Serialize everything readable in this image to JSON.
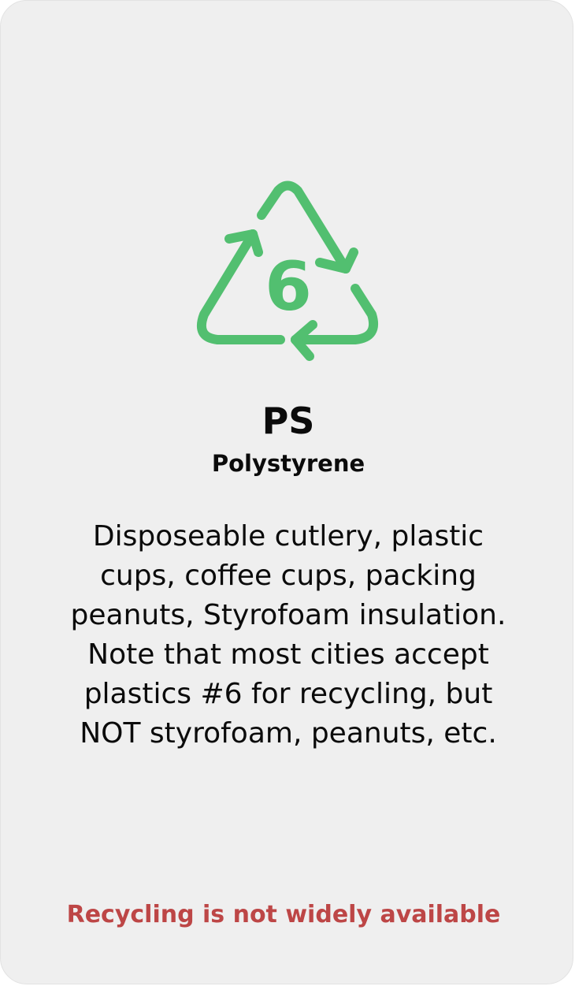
{
  "card": {
    "code": "PS",
    "name": "Polystyrene",
    "description": "Disposeable cutlery, plastic cups, coffee cups, packing peanuts, Styrofoam insulation. Note that most cities accept plastics #6 for recycling, but NOT styrofoam, peanuts, etc.",
    "symbol_number": "6",
    "symbol_icon": "recycling-triangle-icon",
    "status": "Recycling is not widely available"
  },
  "colors": {
    "symbol": "#52bf70",
    "status": "#bd4646",
    "card_background": "#efefef",
    "text": "#0b0b0b"
  }
}
